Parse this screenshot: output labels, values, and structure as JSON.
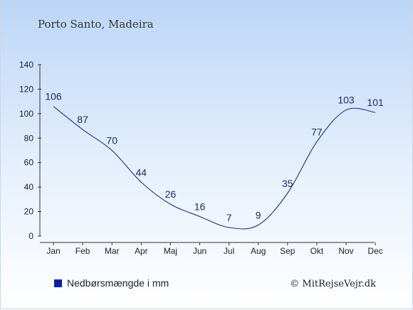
{
  "chart_data": {
    "type": "line",
    "title": "Porto Santo, Madeira",
    "categories": [
      "Jan",
      "Feb",
      "Mar",
      "Apr",
      "Maj",
      "Jun",
      "Jul",
      "Aug",
      "Sep",
      "Okt",
      "Nov",
      "Dec"
    ],
    "series": [
      {
        "name": "Nedbørsmængde i mm",
        "values": [
          106,
          87,
          70,
          44,
          26,
          16,
          7,
          9,
          35,
          77,
          103,
          101
        ]
      }
    ],
    "y_ticks": [
      "0",
      "20",
      "40",
      "60",
      "80",
      "100",
      "120",
      "140"
    ],
    "ylim": [
      0,
      140
    ],
    "grid": false,
    "legend_position": "bottom-left",
    "line_color": "#1c2f8f",
    "legend_color": "#0a1fa8"
  },
  "credit": "© MitRejseVejr.dk"
}
